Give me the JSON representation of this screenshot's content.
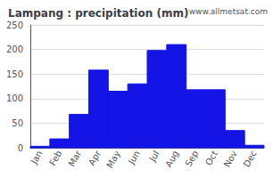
{
  "chart_data": {
    "type": "bar",
    "title": "Lampang : precipitation (mm)",
    "categories": [
      "Jan",
      "Feb",
      "Mar",
      "Apr",
      "May",
      "Jun",
      "Jul",
      "Aug",
      "Sep",
      "Oct",
      "Nov",
      "Dec"
    ],
    "values": [
      3,
      18,
      68,
      158,
      115,
      130,
      198,
      210,
      118,
      118,
      35,
      5
    ],
    "color": "#1414e6",
    "ylim": [
      0,
      250
    ],
    "yticks": [
      0,
      50,
      100,
      150,
      200,
      250
    ],
    "grid": true,
    "annotations": [
      "www.allmetsat.com"
    ]
  }
}
